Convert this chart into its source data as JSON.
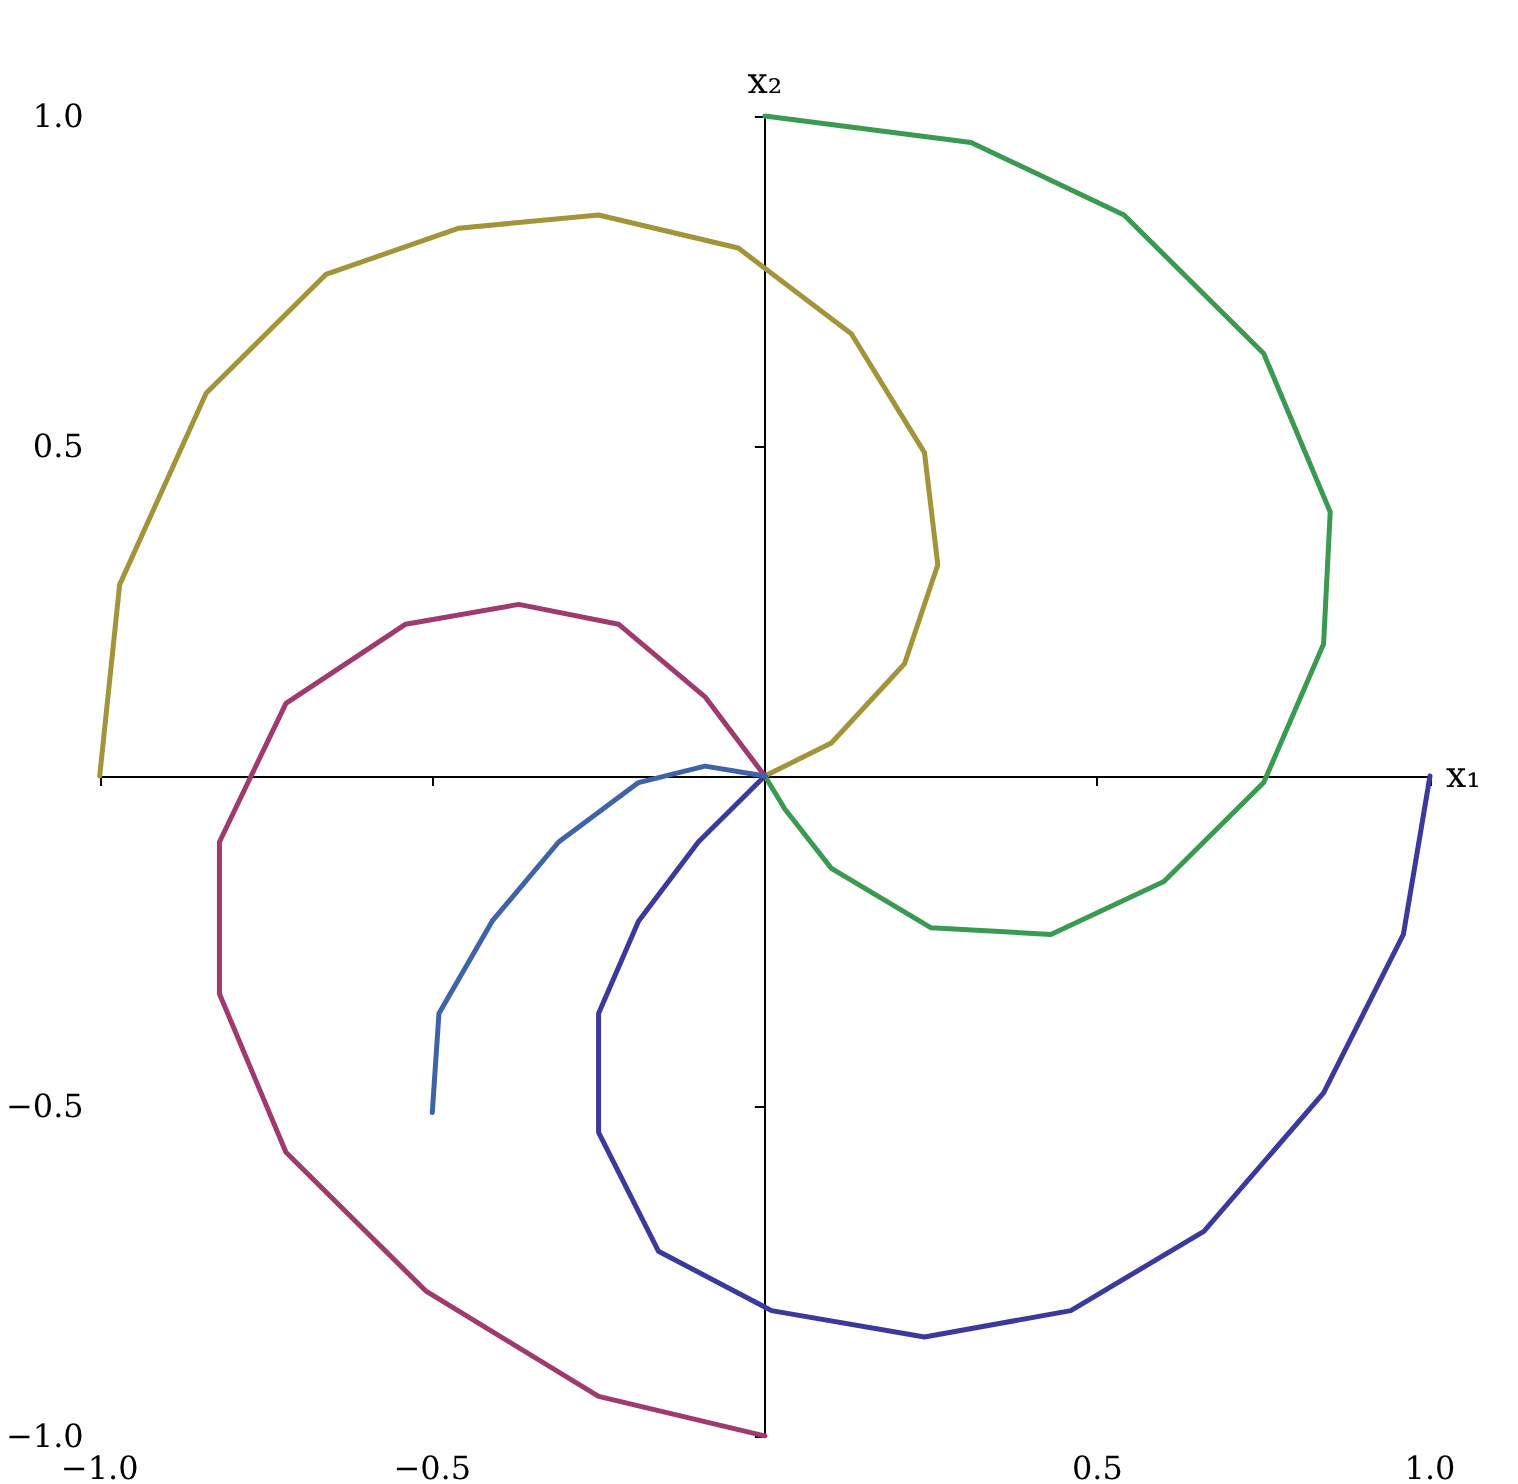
{
  "chart_data": {
    "type": "line",
    "xlabel": "x₁",
    "ylabel": "x₂",
    "xlim": [
      -1,
      1
    ],
    "ylim": [
      -1,
      1
    ],
    "xticks": [
      {
        "value": -1,
        "label": "−1.0"
      },
      {
        "value": -0.5,
        "label": "−0.5"
      },
      {
        "value": 0.5,
        "label": "0.5"
      },
      {
        "value": 1,
        "label": "1.0"
      }
    ],
    "yticks": [
      {
        "value": -1,
        "label": "−1.0"
      },
      {
        "value": -0.5,
        "label": "−0.5"
      },
      {
        "value": 0.5,
        "label": "0.5"
      },
      {
        "value": 1,
        "label": "1.0"
      }
    ],
    "marker": "none",
    "line_style": "solid",
    "series": [
      {
        "color": "#a39339",
        "x": [
          -1,
          -0.97,
          -0.84,
          -0.66,
          -0.46,
          -0.25,
          -0.04,
          0.13,
          0.24,
          0.26,
          0.21,
          0.1,
          0
        ],
        "values": [
          0,
          0.29,
          0.58,
          0.76,
          0.83,
          0.85,
          0.8,
          0.67,
          0.49,
          0.32,
          0.17,
          0.05,
          0
        ]
      },
      {
        "color": "#3a9a52",
        "x": [
          0,
          0.31,
          0.54,
          0.75,
          0.85,
          0.84,
          0.75,
          0.6,
          0.43,
          0.25,
          0.1,
          0.03,
          0
        ],
        "values": [
          1,
          0.96,
          0.85,
          0.64,
          0.4,
          0.2,
          -0.01,
          -0.16,
          -0.24,
          -0.23,
          -0.14,
          -0.05,
          0
        ]
      },
      {
        "color": "#3b3a9c",
        "x": [
          1,
          0.96,
          0.84,
          0.66,
          0.46,
          0.24,
          0.01,
          -0.16,
          -0.25,
          -0.25,
          -0.19,
          -0.1,
          0
        ],
        "values": [
          0,
          -0.24,
          -0.48,
          -0.69,
          -0.81,
          -0.85,
          -0.81,
          -0.72,
          -0.54,
          -0.36,
          -0.22,
          -0.1,
          0
        ]
      },
      {
        "color": "#a03a6e",
        "x": [
          0,
          -0.25,
          -0.51,
          -0.72,
          -0.82,
          -0.82,
          -0.72,
          -0.54,
          -0.37,
          -0.22,
          -0.09,
          0
        ],
        "values": [
          -1,
          -0.94,
          -0.78,
          -0.57,
          -0.33,
          -0.1,
          0.11,
          0.23,
          0.26,
          0.23,
          0.12,
          0
        ]
      },
      {
        "color": "#3f63a8",
        "x": [
          -0.5,
          -0.49,
          -0.41,
          -0.31,
          -0.19,
          -0.09,
          0
        ],
        "values": [
          -0.51,
          -0.36,
          -0.22,
          -0.1,
          -0.01,
          0.015,
          0
        ]
      }
    ]
  }
}
